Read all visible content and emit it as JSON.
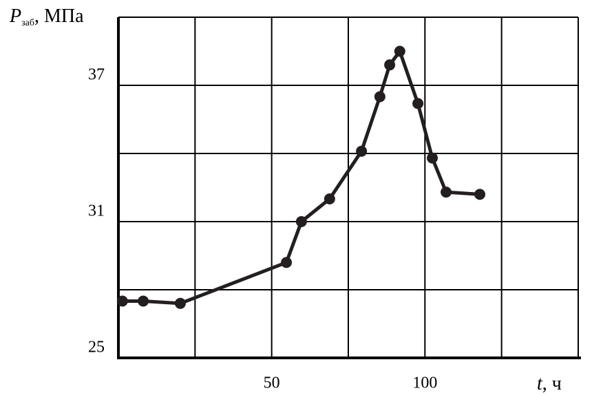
{
  "chart_data": {
    "type": "line",
    "y_label": {
      "symbol": "P",
      "subscript": "заб",
      "unit": ", МПа"
    },
    "x_label": {
      "symbol": "t",
      "unit": ", ч"
    },
    "x": [
      1.3,
      8.1,
      20.2,
      54.8,
      59.7,
      68.9,
      79.3,
      85.3,
      88.5,
      91.8,
      97.7,
      102.4,
      106.9,
      117.9
    ],
    "series": [
      {
        "color": "#231f20",
        "values": [
          27.5,
          27.5,
          27.4,
          29.2,
          31.0,
          32.0,
          34.1,
          36.5,
          37.9,
          38.5,
          36.2,
          33.8,
          32.3,
          32.2
        ]
      }
    ],
    "xlim": [
      0,
      150
    ],
    "xticks": [
      50,
      100
    ],
    "x_minor_ticks": [
      25,
      75,
      125,
      150
    ],
    "ylim": [
      25,
      40
    ],
    "yticks": [
      25,
      31,
      37
    ],
    "y_minor_ticks": [
      28,
      34,
      40
    ],
    "grid": true
  }
}
